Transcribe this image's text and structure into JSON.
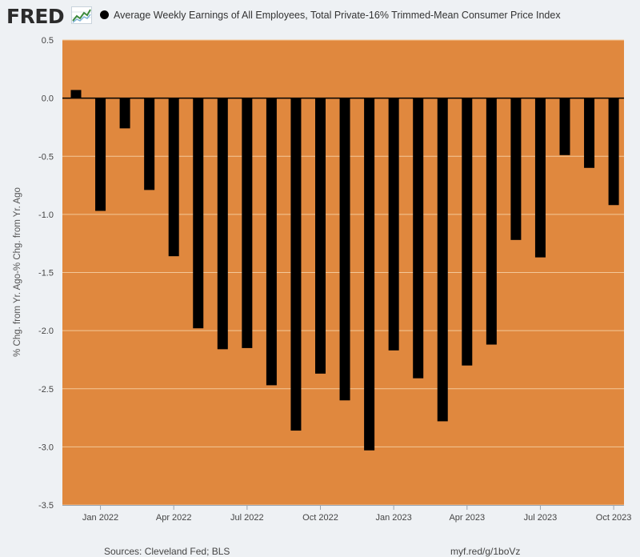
{
  "header": {
    "logo_text": "FRED",
    "logo_icon": "line-graph-icon"
  },
  "colors": {
    "plot_background": "#e0883e",
    "bar": "#000000",
    "gridline": "#f3c799",
    "page_background": "#eef1f4"
  },
  "footer": {
    "source": "Sources: Cleveland Fed; BLS",
    "url": "myf.red/g/1boVz"
  },
  "chart_data": {
    "type": "bar",
    "title": "",
    "ylabel": "% Chg. from Yr. Ago-% Chg. from Yr. Ago",
    "xlabel": "",
    "ylim": [
      -3.5,
      0.5
    ],
    "grid": true,
    "legend_position": "top",
    "yticks": [
      0.5,
      0.0,
      -0.5,
      -1.0,
      -1.5,
      -2.0,
      -2.5,
      -3.0,
      -3.5
    ],
    "ytick_labels": [
      "0.5",
      "0.0",
      "-0.5",
      "-1.0",
      "-1.5",
      "-2.0",
      "-2.5",
      "-3.0",
      "-3.5"
    ],
    "xtick_labels": [
      {
        "label": "Jan 2022",
        "category": "2022-01"
      },
      {
        "label": "Apr 2022",
        "category": "2022-04"
      },
      {
        "label": "Jul 2022",
        "category": "2022-07"
      },
      {
        "label": "Oct 2022",
        "category": "2022-10"
      },
      {
        "label": "Jan 2023",
        "category": "2023-01"
      },
      {
        "label": "Apr 2023",
        "category": "2023-04"
      },
      {
        "label": "Jul 2023",
        "category": "2023-07"
      },
      {
        "label": "Oct 2023",
        "category": "2023-10"
      }
    ],
    "categories": [
      "2021-12",
      "2022-01",
      "2022-02",
      "2022-03",
      "2022-04",
      "2022-05",
      "2022-06",
      "2022-07",
      "2022-08",
      "2022-09",
      "2022-10",
      "2022-11",
      "2022-12",
      "2023-01",
      "2023-02",
      "2023-03",
      "2023-04",
      "2023-05",
      "2023-06",
      "2023-07",
      "2023-08",
      "2023-09",
      "2023-10"
    ],
    "series": [
      {
        "name": "Average Weekly Earnings of All Employees, Total Private-16% Trimmed-Mean Consumer Price Index",
        "values": [
          0.07,
          -0.97,
          -0.26,
          -0.79,
          -1.36,
          -1.98,
          -2.16,
          -2.15,
          -2.47,
          -2.86,
          -2.37,
          -2.6,
          -3.03,
          -2.17,
          -2.41,
          -2.78,
          -2.3,
          -2.12,
          -1.22,
          -1.37,
          -0.49,
          -0.6,
          -0.92
        ]
      }
    ]
  }
}
